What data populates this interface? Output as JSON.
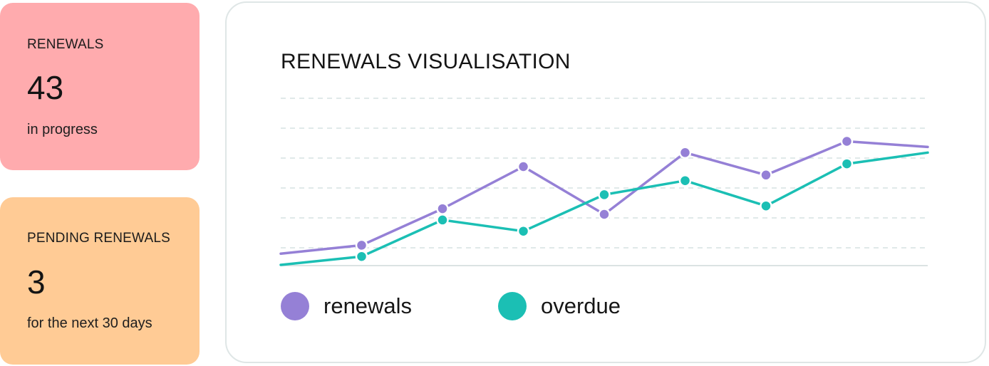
{
  "cards": {
    "renewals": {
      "label": "RENEWALS",
      "value": "43",
      "sub": "in progress"
    },
    "pending": {
      "label": "PENDING RENEWALS",
      "value": "3",
      "sub": "for the next 30 days"
    }
  },
  "chart_data": {
    "type": "line",
    "title": "RENEWALS VISUALISATION",
    "xlabel": "",
    "ylabel": "",
    "x": [
      0,
      1,
      2,
      3,
      4,
      5,
      6,
      7,
      8
    ],
    "ylim": [
      0,
      7
    ],
    "grid": true,
    "legend_position": "bottom",
    "series": [
      {
        "name": "renewals",
        "color": "#9580d6",
        "values": [
          0.4,
          0.7,
          2.0,
          3.5,
          1.8,
          4.0,
          3.2,
          4.4,
          4.2
        ],
        "markers": [
          false,
          true,
          true,
          true,
          true,
          true,
          true,
          true,
          false
        ]
      },
      {
        "name": "overdue",
        "color": "#1bbfb4",
        "values": [
          0.0,
          0.3,
          1.6,
          1.2,
          2.5,
          3.0,
          2.1,
          3.6,
          4.0
        ],
        "markers": [
          false,
          true,
          true,
          true,
          true,
          true,
          true,
          true,
          false
        ]
      }
    ]
  }
}
